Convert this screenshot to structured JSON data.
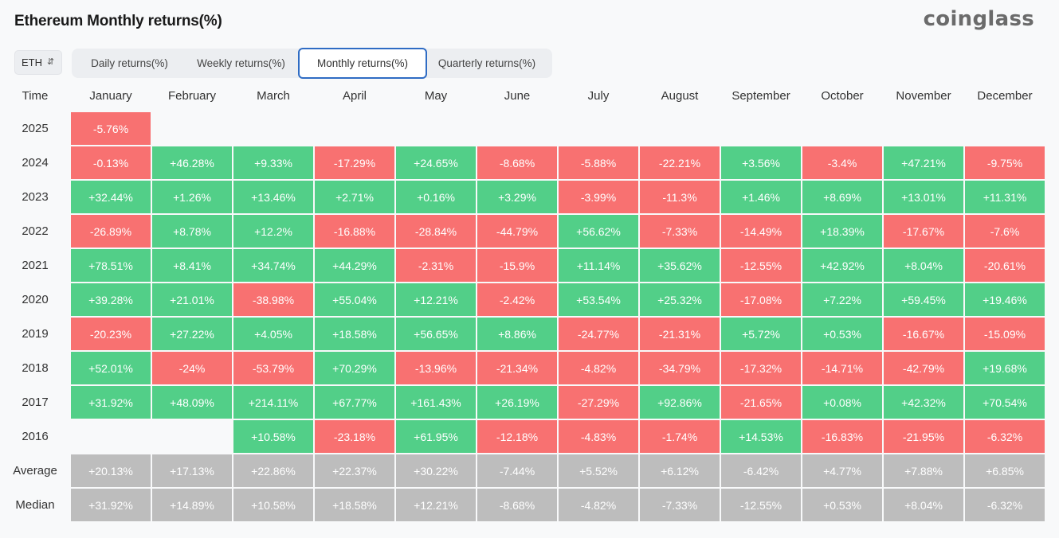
{
  "header": {
    "title": "Ethereum Monthly returns(%)",
    "logo": "coinglass"
  },
  "asset_select": {
    "value": "ETH"
  },
  "tabs": [
    {
      "label": "Daily returns(%)",
      "active": false
    },
    {
      "label": "Weekly returns(%)",
      "active": false
    },
    {
      "label": "Monthly returns(%)",
      "active": true
    },
    {
      "label": "Quarterly returns(%)",
      "active": false
    }
  ],
  "colors": {
    "positive": "#52cf88",
    "negative": "#f87171",
    "summary": "#bdbdbd"
  },
  "chart_data": {
    "type": "table",
    "title": "Ethereum Monthly returns(%)",
    "corner_label": "Time",
    "columns": [
      "January",
      "February",
      "March",
      "April",
      "May",
      "June",
      "July",
      "August",
      "September",
      "October",
      "November",
      "December"
    ],
    "rows": [
      {
        "label": "2025",
        "values": [
          "-5.76%",
          null,
          null,
          null,
          null,
          null,
          null,
          null,
          null,
          null,
          null,
          null
        ]
      },
      {
        "label": "2024",
        "values": [
          "-0.13%",
          "+46.28%",
          "+9.33%",
          "-17.29%",
          "+24.65%",
          "-8.68%",
          "-5.88%",
          "-22.21%",
          "+3.56%",
          "-3.4%",
          "+47.21%",
          "-9.75%"
        ]
      },
      {
        "label": "2023",
        "values": [
          "+32.44%",
          "+1.26%",
          "+13.46%",
          "+2.71%",
          "+0.16%",
          "+3.29%",
          "-3.99%",
          "-11.3%",
          "+1.46%",
          "+8.69%",
          "+13.01%",
          "+11.31%"
        ]
      },
      {
        "label": "2022",
        "values": [
          "-26.89%",
          "+8.78%",
          "+12.2%",
          "-16.88%",
          "-28.84%",
          "-44.79%",
          "+56.62%",
          "-7.33%",
          "-14.49%",
          "+18.39%",
          "-17.67%",
          "-7.6%"
        ]
      },
      {
        "label": "2021",
        "values": [
          "+78.51%",
          "+8.41%",
          "+34.74%",
          "+44.29%",
          "-2.31%",
          "-15.9%",
          "+11.14%",
          "+35.62%",
          "-12.55%",
          "+42.92%",
          "+8.04%",
          "-20.61%"
        ]
      },
      {
        "label": "2020",
        "values": [
          "+39.28%",
          "+21.01%",
          "-38.98%",
          "+55.04%",
          "+12.21%",
          "-2.42%",
          "+53.54%",
          "+25.32%",
          "-17.08%",
          "+7.22%",
          "+59.45%",
          "+19.46%"
        ]
      },
      {
        "label": "2019",
        "values": [
          "-20.23%",
          "+27.22%",
          "+4.05%",
          "+18.58%",
          "+56.65%",
          "+8.86%",
          "-24.77%",
          "-21.31%",
          "+5.72%",
          "+0.53%",
          "-16.67%",
          "-15.09%"
        ]
      },
      {
        "label": "2018",
        "values": [
          "+52.01%",
          "-24%",
          "-53.79%",
          "+70.29%",
          "-13.96%",
          "-21.34%",
          "-4.82%",
          "-34.79%",
          "-17.32%",
          "-14.71%",
          "-42.79%",
          "+19.68%"
        ]
      },
      {
        "label": "2017",
        "values": [
          "+31.92%",
          "+48.09%",
          "+214.11%",
          "+67.77%",
          "+161.43%",
          "+26.19%",
          "-27.29%",
          "+92.86%",
          "-21.65%",
          "+0.08%",
          "+42.32%",
          "+70.54%"
        ]
      },
      {
        "label": "2016",
        "values": [
          null,
          null,
          "+10.58%",
          "-23.18%",
          "+61.95%",
          "-12.18%",
          "-4.83%",
          "-1.74%",
          "+14.53%",
          "-16.83%",
          "-21.95%",
          "-6.32%"
        ]
      }
    ],
    "summary_rows": [
      {
        "label": "Average",
        "values": [
          "+20.13%",
          "+17.13%",
          "+22.86%",
          "+22.37%",
          "+30.22%",
          "-7.44%",
          "+5.52%",
          "+6.12%",
          "-6.42%",
          "+4.77%",
          "+7.88%",
          "+6.85%"
        ]
      },
      {
        "label": "Median",
        "values": [
          "+31.92%",
          "+14.89%",
          "+10.58%",
          "+18.58%",
          "+12.21%",
          "-8.68%",
          "-4.82%",
          "-7.33%",
          "-12.55%",
          "+0.53%",
          "+8.04%",
          "-6.32%"
        ]
      }
    ]
  }
}
